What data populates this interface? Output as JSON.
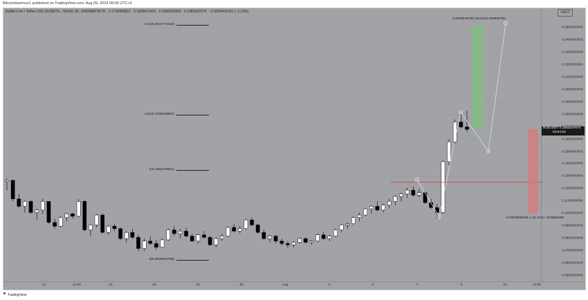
{
  "topbar": {
    "text": "BitcoinHaximus1 published on TradingView.com, Aug 09, 2023 09:05 UTC+2"
  },
  "legend": {
    "title": "Rollbit Coin / Tether USD (0x33676...79e93), 6h, UNISWAP3ETH",
    "open": "0.1728465812",
    "high": "0.1835673423",
    "low": "0.1660504300",
    "close": "0.1683347674",
    "change": "−0.0054441021 (−3.13%)"
  },
  "currency_button": "USDT",
  "price_tag": {
    "symbol": "RLBUSDT",
    "price": "0.1683347674",
    "countdown": "04:54:53"
  },
  "fib_levels": [
    {
      "label": "2.61(0.2521772410)",
      "price": 0.252177241
    },
    {
      "label": "1.61(0.1795439597)",
      "price": 0.1795439597
    },
    {
      "label": "1(0.1352276581)",
      "price": 0.1352276581
    },
    {
      "label": "0(0.0626043768)",
      "price": 0.0626043768
    }
  ],
  "projection": {
    "target_label": "0.0828940782 (49.04%) 828940782",
    "stop_label": "−0.0678835289 (−40.11%) −678835289",
    "target_color": "#7fbf7f",
    "stop_color": "#d77a7a"
  },
  "wave_labels": [
    "1",
    "2",
    "3",
    "4",
    "5"
  ],
  "y_axis": {
    "ticks": [
      "0.2500000000",
      "0.2400000000",
      "0.2300000000",
      "0.2200000000",
      "0.2100000000",
      "0.2000000000",
      "0.1900000000",
      "0.1800000000",
      "0.1700000000",
      "0.1600000000",
      "0.1500000000",
      "0.1400000000",
      "0.1300000000",
      "0.1200000000",
      "0.1100000000",
      "0.1000000000",
      "0.0900000000",
      "0.0800000000",
      "0.0700000000",
      "0.0600000000",
      "0.0500000000"
    ]
  },
  "x_axis": {
    "ticks": [
      "21",
      "14:00",
      "24",
      "26",
      "28",
      "30",
      "Aug",
      "3",
      "5",
      "7",
      "9",
      "11",
      "14:00"
    ]
  },
  "footer": {
    "brand": "TradingView"
  },
  "colors": {
    "background": "#a2a3a7",
    "bull": "#ffffff",
    "bear": "#000000",
    "resistance": "#e03030"
  },
  "chart_data": {
    "type": "candlestick",
    "symbol": "Rollbit Coin / Tether USD",
    "interval": "6h",
    "ylim": [
      0.045,
      0.258
    ],
    "candles": [
      [
        0.126,
        0.128,
        0.119,
        0.127
      ],
      [
        0.127,
        0.127,
        0.11,
        0.112
      ],
      [
        0.112,
        0.116,
        0.105,
        0.106
      ],
      [
        0.106,
        0.111,
        0.101,
        0.11
      ],
      [
        0.11,
        0.111,
        0.1,
        0.101
      ],
      [
        0.101,
        0.104,
        0.095,
        0.103
      ],
      [
        0.103,
        0.112,
        0.1,
        0.11
      ],
      [
        0.11,
        0.11,
        0.092,
        0.093
      ],
      [
        0.093,
        0.096,
        0.088,
        0.09
      ],
      [
        0.09,
        0.098,
        0.089,
        0.097
      ],
      [
        0.097,
        0.101,
        0.094,
        0.1
      ],
      [
        0.1,
        0.101,
        0.096,
        0.098
      ],
      [
        0.098,
        0.112,
        0.097,
        0.11
      ],
      [
        0.11,
        0.111,
        0.086,
        0.087
      ],
      [
        0.087,
        0.092,
        0.082,
        0.091
      ],
      [
        0.091,
        0.1,
        0.089,
        0.099
      ],
      [
        0.099,
        0.1,
        0.084,
        0.085
      ],
      [
        0.085,
        0.091,
        0.083,
        0.09
      ],
      [
        0.09,
        0.092,
        0.086,
        0.088
      ],
      [
        0.088,
        0.089,
        0.079,
        0.08
      ],
      [
        0.08,
        0.086,
        0.077,
        0.085
      ],
      [
        0.085,
        0.088,
        0.08,
        0.081
      ],
      [
        0.081,
        0.083,
        0.07,
        0.072
      ],
      [
        0.072,
        0.08,
        0.07,
        0.078
      ],
      [
        0.078,
        0.082,
        0.075,
        0.076
      ],
      [
        0.076,
        0.079,
        0.071,
        0.073
      ],
      [
        0.073,
        0.08,
        0.072,
        0.079
      ],
      [
        0.079,
        0.088,
        0.078,
        0.087
      ],
      [
        0.087,
        0.09,
        0.082,
        0.084
      ],
      [
        0.084,
        0.088,
        0.08,
        0.086
      ],
      [
        0.086,
        0.089,
        0.081,
        0.082
      ],
      [
        0.082,
        0.084,
        0.077,
        0.078
      ],
      [
        0.078,
        0.084,
        0.076,
        0.083
      ],
      [
        0.083,
        0.086,
        0.08,
        0.081
      ],
      [
        0.081,
        0.082,
        0.074,
        0.075
      ],
      [
        0.075,
        0.081,
        0.073,
        0.08
      ],
      [
        0.08,
        0.084,
        0.078,
        0.082
      ],
      [
        0.082,
        0.09,
        0.081,
        0.089
      ],
      [
        0.089,
        0.092,
        0.085,
        0.086
      ],
      [
        0.086,
        0.09,
        0.084,
        0.088
      ],
      [
        0.088,
        0.096,
        0.087,
        0.095
      ],
      [
        0.095,
        0.097,
        0.09,
        0.091
      ],
      [
        0.091,
        0.092,
        0.084,
        0.085
      ],
      [
        0.085,
        0.087,
        0.079,
        0.08
      ],
      [
        0.08,
        0.083,
        0.077,
        0.082
      ],
      [
        0.082,
        0.083,
        0.076,
        0.078
      ],
      [
        0.078,
        0.08,
        0.074,
        0.076
      ],
      [
        0.076,
        0.078,
        0.072,
        0.075
      ],
      [
        0.075,
        0.078,
        0.073,
        0.077
      ],
      [
        0.077,
        0.081,
        0.076,
        0.08
      ],
      [
        0.08,
        0.081,
        0.076,
        0.077
      ],
      [
        0.077,
        0.079,
        0.075,
        0.078
      ],
      [
        0.078,
        0.084,
        0.077,
        0.083
      ],
      [
        0.083,
        0.085,
        0.079,
        0.08
      ],
      [
        0.08,
        0.083,
        0.078,
        0.082
      ],
      [
        0.082,
        0.088,
        0.081,
        0.087
      ],
      [
        0.087,
        0.092,
        0.085,
        0.091
      ],
      [
        0.091,
        0.093,
        0.088,
        0.092
      ],
      [
        0.092,
        0.098,
        0.091,
        0.097
      ],
      [
        0.097,
        0.101,
        0.094,
        0.099
      ],
      [
        0.099,
        0.105,
        0.098,
        0.104
      ],
      [
        0.104,
        0.107,
        0.1,
        0.106
      ],
      [
        0.106,
        0.11,
        0.102,
        0.103
      ],
      [
        0.103,
        0.108,
        0.101,
        0.107
      ],
      [
        0.107,
        0.112,
        0.105,
        0.11
      ],
      [
        0.11,
        0.115,
        0.107,
        0.114
      ],
      [
        0.114,
        0.117,
        0.11,
        0.116
      ],
      [
        0.116,
        0.121,
        0.113,
        0.119
      ],
      [
        0.119,
        0.122,
        0.114,
        0.115
      ],
      [
        0.115,
        0.12,
        0.113,
        0.117
      ],
      [
        0.117,
        0.118,
        0.108,
        0.109
      ],
      [
        0.109,
        0.112,
        0.104,
        0.105
      ],
      [
        0.105,
        0.108,
        0.096,
        0.101
      ],
      [
        0.101,
        0.143,
        0.1,
        0.142
      ],
      [
        0.142,
        0.16,
        0.139,
        0.158
      ],
      [
        0.158,
        0.176,
        0.156,
        0.174
      ],
      [
        0.174,
        0.184,
        0.169,
        0.17
      ],
      [
        0.17,
        0.183,
        0.166,
        0.168
      ]
    ],
    "resistance": 0.1255
  }
}
